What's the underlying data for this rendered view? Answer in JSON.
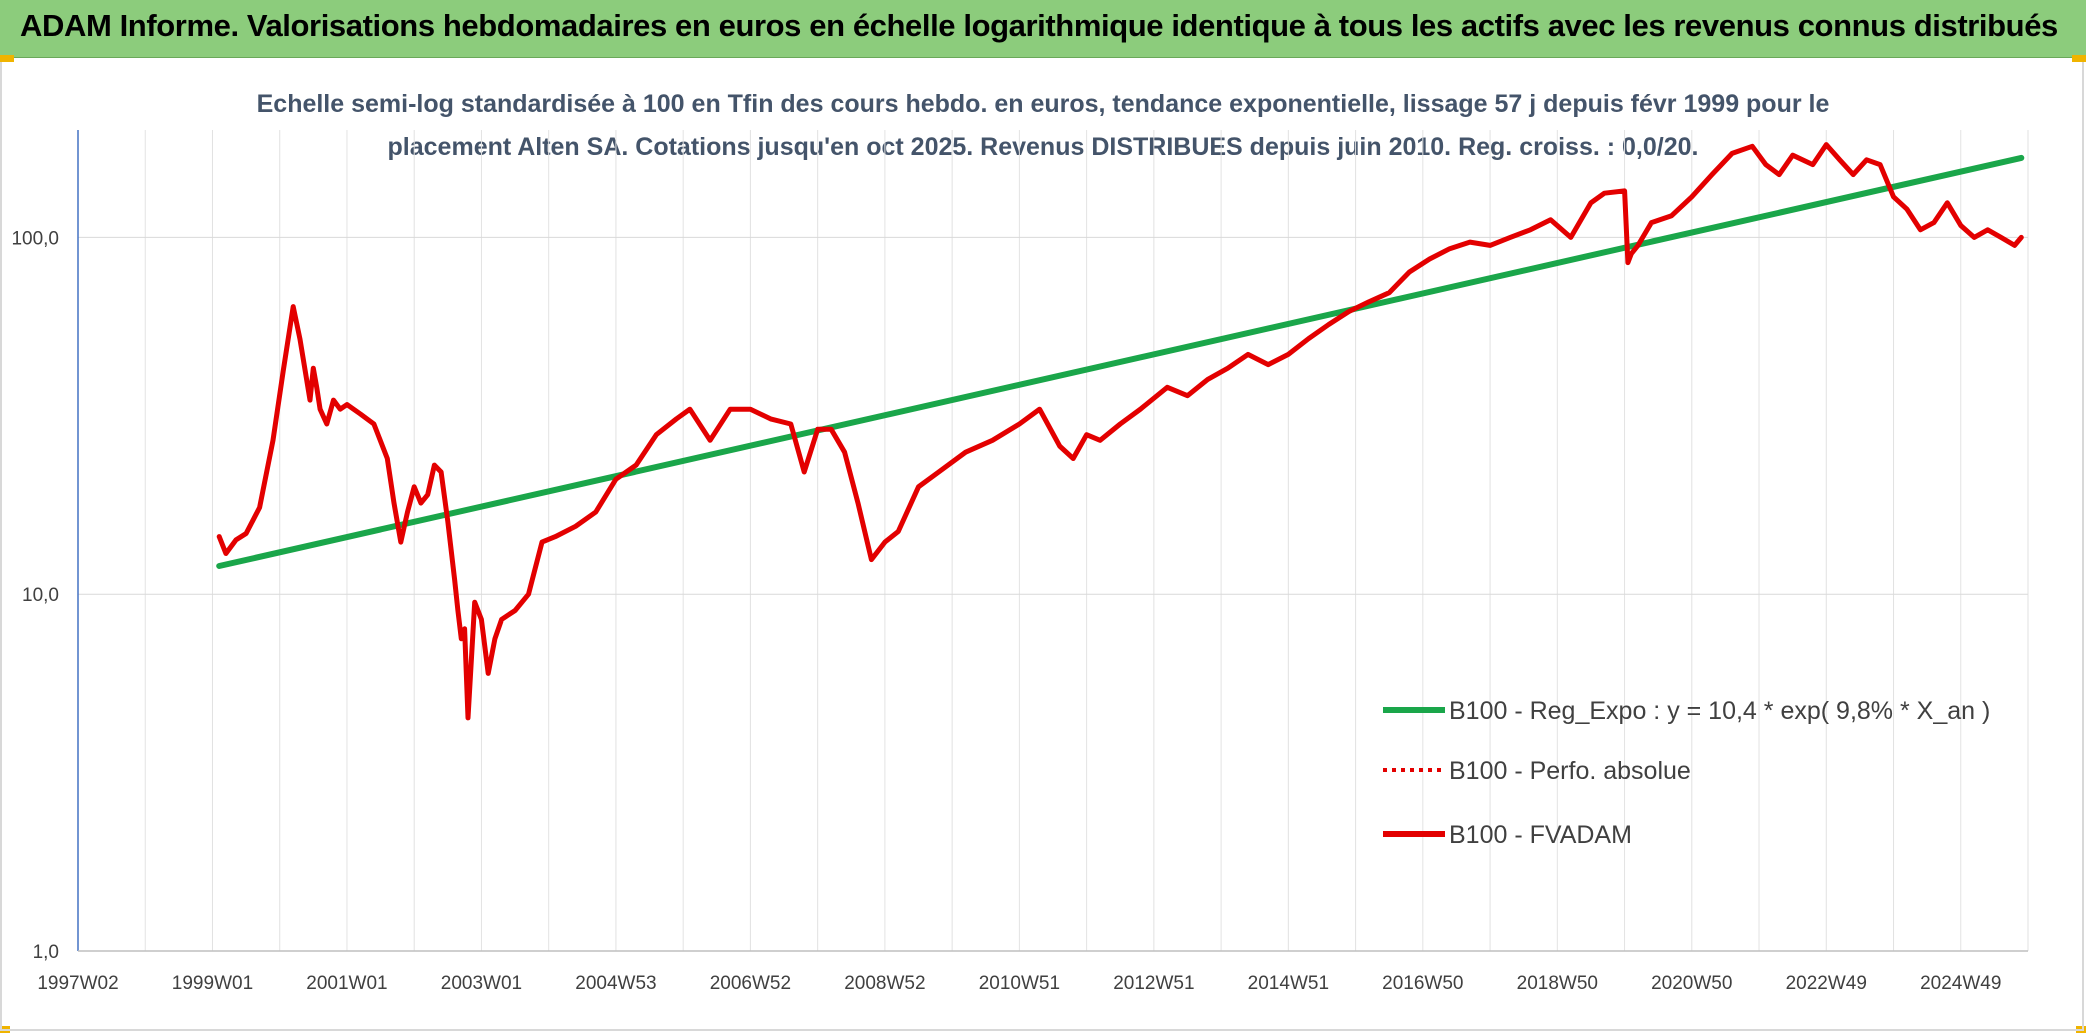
{
  "banner": {
    "title": "ADAM Informe. Valorisations hebdomadaires en euros en échelle logarithmique identique à tous les actifs avec les revenus connus distribués"
  },
  "colors": {
    "banner_bg": "#8ccc7c",
    "corner_accent": "#f0b400",
    "subtitle_text": "#44546a",
    "trend_line": "#1aa64a",
    "price_line": "#e30000"
  },
  "chart_data": {
    "type": "line",
    "title_lines": [
      "Echelle semi-log standardisée à 100 en Tfin des cours hebdo. en euros, tendance exponentielle, lissage 57 j depuis févr 1999 pour le",
      "placement Alten SA. Cotations jusqu'en oct 2025. Revenus DISTRIBUES depuis juin 2010. Reg. croiss. : 0,0/20."
    ],
    "y_scale": "log",
    "ylim": [
      1,
      200
    ],
    "y_ticks": [
      {
        "value": 1,
        "label": "1,0"
      },
      {
        "value": 10,
        "label": "10,0"
      },
      {
        "value": 100,
        "label": "100,0"
      }
    ],
    "xlim": [
      1997.0,
      2026.0
    ],
    "x_ticks": [
      {
        "value": 1997.0,
        "label": "1997W02"
      },
      {
        "value": 1999.0,
        "label": "1999W01"
      },
      {
        "value": 2001.0,
        "label": "2001W01"
      },
      {
        "value": 2003.0,
        "label": "2003W01"
      },
      {
        "value": 2005.0,
        "label": "2004W53"
      },
      {
        "value": 2007.0,
        "label": "2006W52"
      },
      {
        "value": 2009.0,
        "label": "2008W52"
      },
      {
        "value": 2011.0,
        "label": "2010W51"
      },
      {
        "value": 2013.0,
        "label": "2012W51"
      },
      {
        "value": 2015.0,
        "label": "2014W51"
      },
      {
        "value": 2017.0,
        "label": "2016W50"
      },
      {
        "value": 2019.0,
        "label": "2018W50"
      },
      {
        "value": 2021.0,
        "label": "2020W50"
      },
      {
        "value": 2023.0,
        "label": "2022W49"
      },
      {
        "value": 2025.0,
        "label": "2024W49"
      }
    ],
    "grid": "vertical and horizontal",
    "legend_position": "bottom-right",
    "series": [
      {
        "name": "B100 - Reg_Expo : y = 10,4 * exp( 9,8% *  X_an )",
        "style": "solid",
        "color": "#1aa64a",
        "x": [
          1999.1,
          2025.9
        ],
        "y": [
          12.0,
          167.0
        ]
      },
      {
        "name": "B100 - Perfo. absolue",
        "style": "dotted",
        "color": "#e30000",
        "x": [],
        "y": []
      },
      {
        "name": "B100 - FVADAM",
        "style": "solid",
        "color": "#e30000",
        "x": [
          1999.1,
          1999.2,
          1999.35,
          1999.5,
          1999.7,
          1999.9,
          2000.05,
          2000.2,
          2000.3,
          2000.4,
          2000.45,
          2000.5,
          2000.55,
          2000.6,
          2000.7,
          2000.8,
          2000.9,
          2001.0,
          2001.2,
          2001.4,
          2001.6,
          2001.7,
          2001.8,
          2001.9,
          2002.0,
          2002.1,
          2002.2,
          2002.3,
          2002.4,
          2002.5,
          2002.6,
          2002.65,
          2002.7,
          2002.75,
          2002.8,
          2002.9,
          2003.0,
          2003.1,
          2003.2,
          2003.3,
          2003.5,
          2003.7,
          2003.9,
          2004.1,
          2004.4,
          2004.7,
          2005.0,
          2005.3,
          2005.6,
          2005.9,
          2006.1,
          2006.4,
          2006.7,
          2007.0,
          2007.3,
          2007.6,
          2007.8,
          2008.0,
          2008.2,
          2008.4,
          2008.6,
          2008.8,
          2009.0,
          2009.2,
          2009.5,
          2009.8,
          2010.2,
          2010.6,
          2011.0,
          2011.3,
          2011.6,
          2011.8,
          2012.0,
          2012.2,
          2012.5,
          2012.8,
          2013.2,
          2013.5,
          2013.8,
          2014.1,
          2014.4,
          2014.7,
          2015.0,
          2015.3,
          2015.6,
          2015.9,
          2016.2,
          2016.5,
          2016.8,
          2017.1,
          2017.4,
          2017.7,
          2018.0,
          2018.3,
          2018.6,
          2018.9,
          2019.2,
          2019.5,
          2019.7,
          2020.0,
          2020.05,
          2020.1,
          2020.2,
          2020.4,
          2020.7,
          2021.0,
          2021.3,
          2021.6,
          2021.9,
          2022.1,
          2022.3,
          2022.5,
          2022.8,
          2023.0,
          2023.2,
          2023.4,
          2023.6,
          2023.8,
          2024.0,
          2024.2,
          2024.4,
          2024.6,
          2024.8,
          2025.0,
          2025.2,
          2025.4,
          2025.6,
          2025.8,
          2025.9
        ],
        "y": [
          14.5,
          13.0,
          14.2,
          14.8,
          17.5,
          27.0,
          42.0,
          64.0,
          52.0,
          40.0,
          35.0,
          43.0,
          38.0,
          33.0,
          30.0,
          35.0,
          33.0,
          34.0,
          32.0,
          30.0,
          24.0,
          18.0,
          14.0,
          17.0,
          20.0,
          18.0,
          19.0,
          23.0,
          22.0,
          16.0,
          11.0,
          9.0,
          7.5,
          8.0,
          4.5,
          9.5,
          8.5,
          6.0,
          7.5,
          8.5,
          9.0,
          10.0,
          14.0,
          14.5,
          15.5,
          17.0,
          21.0,
          23.0,
          28.0,
          31.0,
          33.0,
          27.0,
          33.0,
          33.0,
          31.0,
          30.0,
          22.0,
          29.0,
          29.0,
          25.0,
          18.0,
          12.5,
          14.0,
          15.0,
          20.0,
          22.0,
          25.0,
          27.0,
          30.0,
          33.0,
          26.0,
          24.0,
          28.0,
          27.0,
          30.0,
          33.0,
          38.0,
          36.0,
          40.0,
          43.0,
          47.0,
          44.0,
          47.0,
          52.0,
          57.0,
          62.0,
          66.0,
          70.0,
          80.0,
          87.0,
          93.0,
          97.0,
          95.0,
          100.0,
          105.0,
          112.0,
          100.0,
          125.0,
          133.0,
          135.0,
          85.0,
          90.0,
          95.0,
          110.0,
          115.0,
          130.0,
          150.0,
          172.0,
          180.0,
          160.0,
          150.0,
          170.0,
          160.0,
          182.0,
          165.0,
          150.0,
          165.0,
          160.0,
          130.0,
          120.0,
          105.0,
          110.0,
          125.0,
          108.0,
          100.0,
          105.0,
          100.0,
          95.0,
          100.0
        ]
      }
    ]
  }
}
